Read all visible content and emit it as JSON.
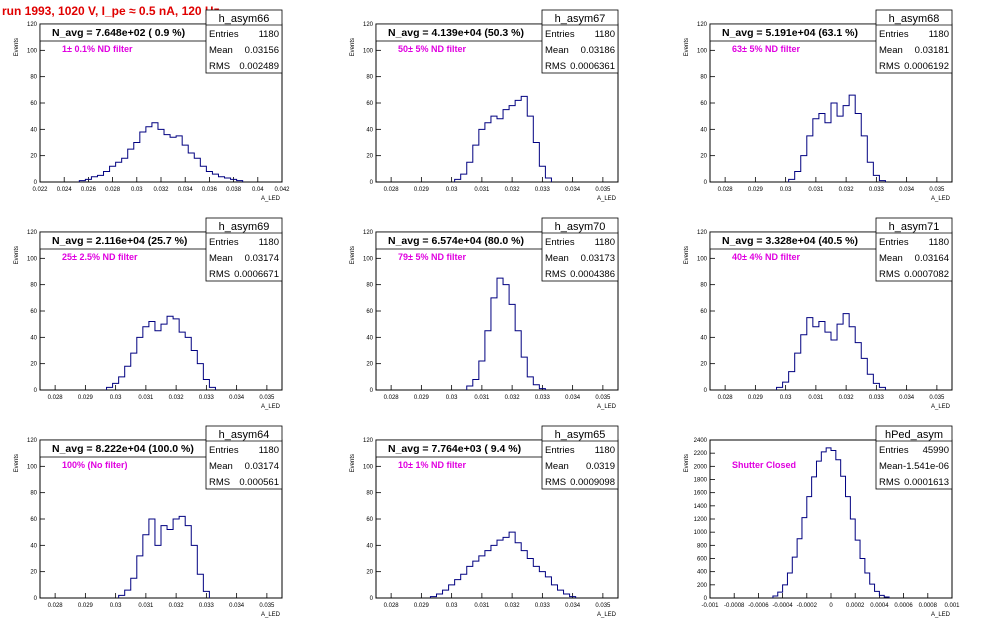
{
  "page_title": "run 1993,  1020 V, I_pe ≈ 0.5 nA, 120 Hz",
  "stats_labels": {
    "entries": "Entries",
    "mean": "Mean",
    "rms": "RMS"
  },
  "colors": {
    "histogram": "#000080",
    "annotation": "#e000e0",
    "title": "#e00000",
    "axis": "#000000"
  },
  "axis_titles": {
    "x": "A_LED",
    "y": "Events"
  },
  "chart_data": [
    {
      "type": "bar",
      "name": "h_asym66",
      "title": "N_avg = 7.648e+02 ( 0.9 %)",
      "annotation": "1± 0.1% ND filter",
      "entries": "1180",
      "mean": "0.03156",
      "rms": "0.002489",
      "xlim": [
        0.022,
        0.042
      ],
      "ylim": [
        0,
        120
      ],
      "xticks": [
        0.022,
        0.024,
        0.026,
        0.028,
        0.03,
        0.032,
        0.034,
        0.036,
        0.038,
        0.04,
        0.042
      ],
      "xticklabels": [
        "0.022",
        "0.024",
        "0.026",
        "0.028",
        "0.03",
        "0.032",
        "0.034",
        "0.036",
        "0.038",
        "0.04",
        "0.042"
      ],
      "yticks": [
        0,
        20,
        40,
        60,
        80,
        100,
        120
      ],
      "x": [
        0.0255,
        0.026,
        0.0265,
        0.027,
        0.0275,
        0.028,
        0.0285,
        0.029,
        0.0295,
        0.03,
        0.0305,
        0.031,
        0.0315,
        0.032,
        0.0325,
        0.033,
        0.0335,
        0.034,
        0.0345,
        0.035,
        0.0355,
        0.036,
        0.0365,
        0.037,
        0.0375,
        0.038,
        0.0385
      ],
      "values": [
        1,
        2,
        4,
        5,
        8,
        12,
        15,
        18,
        25,
        30,
        38,
        42,
        45,
        40,
        36,
        34,
        35,
        28,
        22,
        18,
        12,
        8,
        6,
        4,
        3,
        2,
        1
      ]
    },
    {
      "type": "bar",
      "name": "h_asym67",
      "title": "N_avg = 4.139e+04 (50.3 %)",
      "annotation": "50± 5% ND filter",
      "entries": "1180",
      "mean": "0.03186",
      "rms": "0.0006361",
      "xlim": [
        0.0275,
        0.0355
      ],
      "ylim": [
        0,
        120
      ],
      "xticks": [
        0.028,
        0.029,
        0.03,
        0.031,
        0.032,
        0.033,
        0.034,
        0.035
      ],
      "xticklabels": [
        "0.028",
        "0.029",
        "0.03",
        "0.031",
        "0.032",
        "0.033",
        "0.034",
        "0.035"
      ],
      "yticks": [
        0,
        20,
        40,
        60,
        80,
        100,
        120
      ],
      "x": [
        0.0302,
        0.0304,
        0.0306,
        0.0308,
        0.031,
        0.0312,
        0.0314,
        0.0316,
        0.0318,
        0.032,
        0.0322,
        0.0324,
        0.0326,
        0.0328,
        0.033,
        0.0332
      ],
      "values": [
        2,
        6,
        15,
        28,
        40,
        45,
        50,
        48,
        55,
        58,
        62,
        65,
        50,
        30,
        12,
        3
      ]
    },
    {
      "type": "bar",
      "name": "h_asym68",
      "title": "N_avg = 5.191e+04 (63.1 %)",
      "annotation": "63± 5% ND filter",
      "entries": "1180",
      "mean": "0.03181",
      "rms": "0.0006192",
      "xlim": [
        0.0275,
        0.0355
      ],
      "ylim": [
        0,
        120
      ],
      "xticks": [
        0.028,
        0.029,
        0.03,
        0.031,
        0.032,
        0.033,
        0.034,
        0.035
      ],
      "xticklabels": [
        "0.028",
        "0.029",
        "0.03",
        "0.031",
        "0.032",
        "0.033",
        "0.034",
        "0.035"
      ],
      "yticks": [
        0,
        20,
        40,
        60,
        80,
        100,
        120
      ],
      "x": [
        0.0302,
        0.0304,
        0.0306,
        0.0308,
        0.031,
        0.0312,
        0.0314,
        0.0316,
        0.0318,
        0.032,
        0.0322,
        0.0324,
        0.0326,
        0.0328,
        0.033,
        0.0332
      ],
      "values": [
        2,
        8,
        20,
        35,
        48,
        52,
        45,
        60,
        50,
        58,
        66,
        52,
        35,
        15,
        5,
        1
      ]
    },
    {
      "type": "bar",
      "name": "h_asym69",
      "title": "N_avg = 2.116e+04 (25.7 %)",
      "annotation": "25± 2.5% ND filter",
      "entries": "1180",
      "mean": "0.03174",
      "rms": "0.0006671",
      "xlim": [
        0.0275,
        0.0355
      ],
      "ylim": [
        0,
        120
      ],
      "xticks": [
        0.028,
        0.029,
        0.03,
        0.031,
        0.032,
        0.033,
        0.034,
        0.035
      ],
      "xticklabels": [
        "0.028",
        "0.029",
        "0.03",
        "0.031",
        "0.032",
        "0.033",
        "0.034",
        "0.035"
      ],
      "yticks": [
        0,
        20,
        40,
        60,
        80,
        100,
        120
      ],
      "x": [
        0.0298,
        0.03,
        0.0302,
        0.0304,
        0.0306,
        0.0308,
        0.031,
        0.0312,
        0.0314,
        0.0316,
        0.0318,
        0.032,
        0.0322,
        0.0324,
        0.0326,
        0.0328,
        0.033,
        0.0332
      ],
      "values": [
        2,
        5,
        10,
        18,
        28,
        40,
        48,
        52,
        45,
        50,
        56,
        54,
        44,
        40,
        30,
        20,
        8,
        2
      ]
    },
    {
      "type": "bar",
      "name": "h_asym70",
      "title": "N_avg = 6.574e+04 (80.0 %)",
      "annotation": "79± 5% ND filter",
      "entries": "1180",
      "mean": "0.03173",
      "rms": "0.0004386",
      "xlim": [
        0.0275,
        0.0355
      ],
      "ylim": [
        0,
        120
      ],
      "xticks": [
        0.028,
        0.029,
        0.03,
        0.031,
        0.032,
        0.033,
        0.034,
        0.035
      ],
      "xticklabels": [
        "0.028",
        "0.029",
        "0.03",
        "0.031",
        "0.032",
        "0.033",
        "0.034",
        "0.035"
      ],
      "yticks": [
        0,
        20,
        40,
        60,
        80,
        100,
        120
      ],
      "x": [
        0.0306,
        0.0308,
        0.031,
        0.0312,
        0.0314,
        0.0316,
        0.0318,
        0.032,
        0.0322,
        0.0324,
        0.0326,
        0.0328,
        0.033
      ],
      "values": [
        3,
        8,
        22,
        45,
        70,
        85,
        80,
        65,
        45,
        25,
        10,
        4,
        1
      ]
    },
    {
      "type": "bar",
      "name": "h_asym71",
      "title": "N_avg = 3.328e+04 (40.5 %)",
      "annotation": "40± 4% ND filter",
      "entries": "1180",
      "mean": "0.03164",
      "rms": "0.0007082",
      "xlim": [
        0.0275,
        0.0355
      ],
      "ylim": [
        0,
        120
      ],
      "xticks": [
        0.028,
        0.029,
        0.03,
        0.031,
        0.032,
        0.033,
        0.034,
        0.035
      ],
      "xticklabels": [
        "0.028",
        "0.029",
        "0.03",
        "0.031",
        "0.032",
        "0.033",
        "0.034",
        "0.035"
      ],
      "yticks": [
        0,
        20,
        40,
        60,
        80,
        100,
        120
      ],
      "x": [
        0.0298,
        0.03,
        0.0302,
        0.0304,
        0.0306,
        0.0308,
        0.031,
        0.0312,
        0.0314,
        0.0316,
        0.0318,
        0.032,
        0.0322,
        0.0324,
        0.0326,
        0.0328,
        0.033,
        0.0332
      ],
      "values": [
        2,
        6,
        14,
        28,
        42,
        55,
        48,
        52,
        44,
        38,
        50,
        58,
        48,
        36,
        24,
        12,
        5,
        2
      ]
    },
    {
      "type": "bar",
      "name": "h_asym64",
      "title": "N_avg = 8.222e+04 (100.0 %)",
      "annotation": "100% (No filter)",
      "entries": "1180",
      "mean": "0.03174",
      "rms": "0.000561",
      "xlim": [
        0.0275,
        0.0355
      ],
      "ylim": [
        0,
        120
      ],
      "xticks": [
        0.028,
        0.029,
        0.03,
        0.031,
        0.032,
        0.033,
        0.034,
        0.035
      ],
      "xticklabels": [
        "0.028",
        "0.029",
        "0.03",
        "0.031",
        "0.032",
        "0.033",
        "0.034",
        "0.035"
      ],
      "yticks": [
        0,
        20,
        40,
        60,
        80,
        100,
        120
      ],
      "x": [
        0.0302,
        0.0304,
        0.0306,
        0.0308,
        0.031,
        0.0312,
        0.0314,
        0.0316,
        0.0318,
        0.032,
        0.0322,
        0.0324,
        0.0326,
        0.0328,
        0.033
      ],
      "values": [
        2,
        6,
        15,
        32,
        48,
        60,
        40,
        55,
        52,
        60,
        62,
        55,
        40,
        18,
        5
      ]
    },
    {
      "type": "bar",
      "name": "h_asym65",
      "title": "N_avg = 7.764e+03 ( 9.4 %)",
      "annotation": "10± 1% ND filter",
      "entries": "1180",
      "mean": "0.0319",
      "rms": "0.0009098",
      "xlim": [
        0.0275,
        0.0355
      ],
      "ylim": [
        0,
        120
      ],
      "xticks": [
        0.028,
        0.029,
        0.03,
        0.031,
        0.032,
        0.033,
        0.034,
        0.035
      ],
      "xticklabels": [
        "0.028",
        "0.029",
        "0.03",
        "0.031",
        "0.032",
        "0.033",
        "0.034",
        "0.035"
      ],
      "yticks": [
        0,
        20,
        40,
        60,
        80,
        100,
        120
      ],
      "x": [
        0.0294,
        0.0296,
        0.0298,
        0.03,
        0.0302,
        0.0304,
        0.0306,
        0.0308,
        0.031,
        0.0312,
        0.0314,
        0.0316,
        0.0318,
        0.032,
        0.0322,
        0.0324,
        0.0326,
        0.0328,
        0.033,
        0.0332,
        0.0334,
        0.0336,
        0.0338,
        0.034
      ],
      "values": [
        1,
        3,
        6,
        10,
        14,
        18,
        24,
        28,
        32,
        36,
        40,
        44,
        46,
        50,
        42,
        36,
        30,
        24,
        20,
        16,
        10,
        6,
        3,
        1
      ]
    },
    {
      "type": "bar",
      "name": "hPed_asym",
      "title": "",
      "annotation": "Shutter Closed",
      "entries": "45990",
      "mean": "-1.541e-06",
      "rms": "0.0001613",
      "xlim": [
        -0.001,
        0.001
      ],
      "ylim": [
        0,
        2400
      ],
      "xticks": [
        -0.001,
        -0.0008,
        -0.0006,
        -0.0004,
        -0.0002,
        0,
        0.0002,
        0.0004,
        0.0006,
        0.0008,
        0.001
      ],
      "xticklabels": [
        "-0.001",
        "-0.0008",
        "-0.0006",
        "-0.0004",
        "-0.0002",
        "0",
        "0.0002",
        "0.0004",
        "0.0006",
        "0.0008",
        "0.001"
      ],
      "yticks": [
        0,
        200,
        400,
        600,
        800,
        1000,
        1200,
        1400,
        1600,
        1800,
        2000,
        2200,
        2400
      ],
      "x": [
        -0.00046,
        -0.00042,
        -0.00038,
        -0.00034,
        -0.0003,
        -0.00026,
        -0.00022,
        -0.00018,
        -0.00014,
        -0.0001,
        -6e-05,
        -2e-05,
        2e-05,
        6e-05,
        0.0001,
        0.00014,
        0.00018,
        0.00022,
        0.00026,
        0.0003,
        0.00034,
        0.00038,
        0.00042,
        0.00046
      ],
      "values": [
        30,
        90,
        200,
        380,
        620,
        900,
        1220,
        1540,
        1840,
        2080,
        2220,
        2280,
        2240,
        2100,
        1850,
        1540,
        1200,
        880,
        600,
        380,
        210,
        100,
        40,
        15
      ]
    }
  ]
}
